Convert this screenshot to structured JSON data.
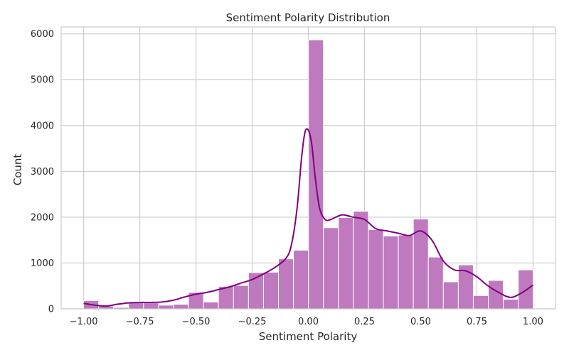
{
  "chart_data": {
    "type": "bar",
    "title": "Sentiment Polarity Distribution",
    "xlabel": "Sentiment Polarity",
    "ylabel": "Count",
    "xlim": [
      -1.1,
      1.1
    ],
    "ylim": [
      0,
      6150
    ],
    "x_ticks": [
      -1.0,
      -0.75,
      -0.5,
      -0.25,
      0.0,
      0.25,
      0.5,
      0.75,
      1.0
    ],
    "x_tick_labels": [
      "−1.00",
      "−0.75",
      "−0.50",
      "−0.25",
      "0.00",
      "0.25",
      "0.50",
      "0.75",
      "1.00"
    ],
    "y_ticks": [
      0,
      1000,
      2000,
      3000,
      4000,
      5000,
      6000
    ],
    "y_tick_labels": [
      "0",
      "1000",
      "2000",
      "3000",
      "4000",
      "5000",
      "6000"
    ],
    "grid": true,
    "bar_color": "#bf7abf",
    "bar_edge_color": "#ffffff",
    "kde_color": "#800080",
    "bins": {
      "start": -1.0,
      "width": 0.0667,
      "counts": [
        180,
        60,
        30,
        140,
        130,
        80,
        100,
        360,
        150,
        490,
        510,
        790,
        800,
        1090,
        1280,
        5870,
        1770,
        1990,
        2130,
        1730,
        1590,
        1610,
        1960,
        1130,
        590,
        960,
        290,
        620,
        210,
        850
      ]
    },
    "kde": {
      "x": [
        -1.0,
        -0.95,
        -0.9,
        -0.85,
        -0.8,
        -0.75,
        -0.7,
        -0.65,
        -0.6,
        -0.55,
        -0.5,
        -0.45,
        -0.4,
        -0.35,
        -0.3,
        -0.25,
        -0.2,
        -0.15,
        -0.1,
        -0.075,
        -0.05,
        -0.03,
        -0.015,
        0.0,
        0.015,
        0.03,
        0.05,
        0.075,
        0.1,
        0.15,
        0.2,
        0.25,
        0.3,
        0.35,
        0.4,
        0.45,
        0.5,
        0.55,
        0.6,
        0.65,
        0.7,
        0.75,
        0.8,
        0.85,
        0.9,
        0.95,
        1.0
      ],
      "y": [
        120,
        80,
        60,
        100,
        130,
        140,
        140,
        150,
        190,
        260,
        320,
        360,
        420,
        480,
        560,
        640,
        760,
        900,
        1100,
        1400,
        2200,
        3300,
        3850,
        3900,
        3600,
        2900,
        2200,
        1950,
        1950,
        2050,
        2000,
        1950,
        1750,
        1700,
        1650,
        1600,
        1700,
        1500,
        1050,
        850,
        830,
        700,
        500,
        350,
        250,
        350,
        520
      ]
    }
  }
}
